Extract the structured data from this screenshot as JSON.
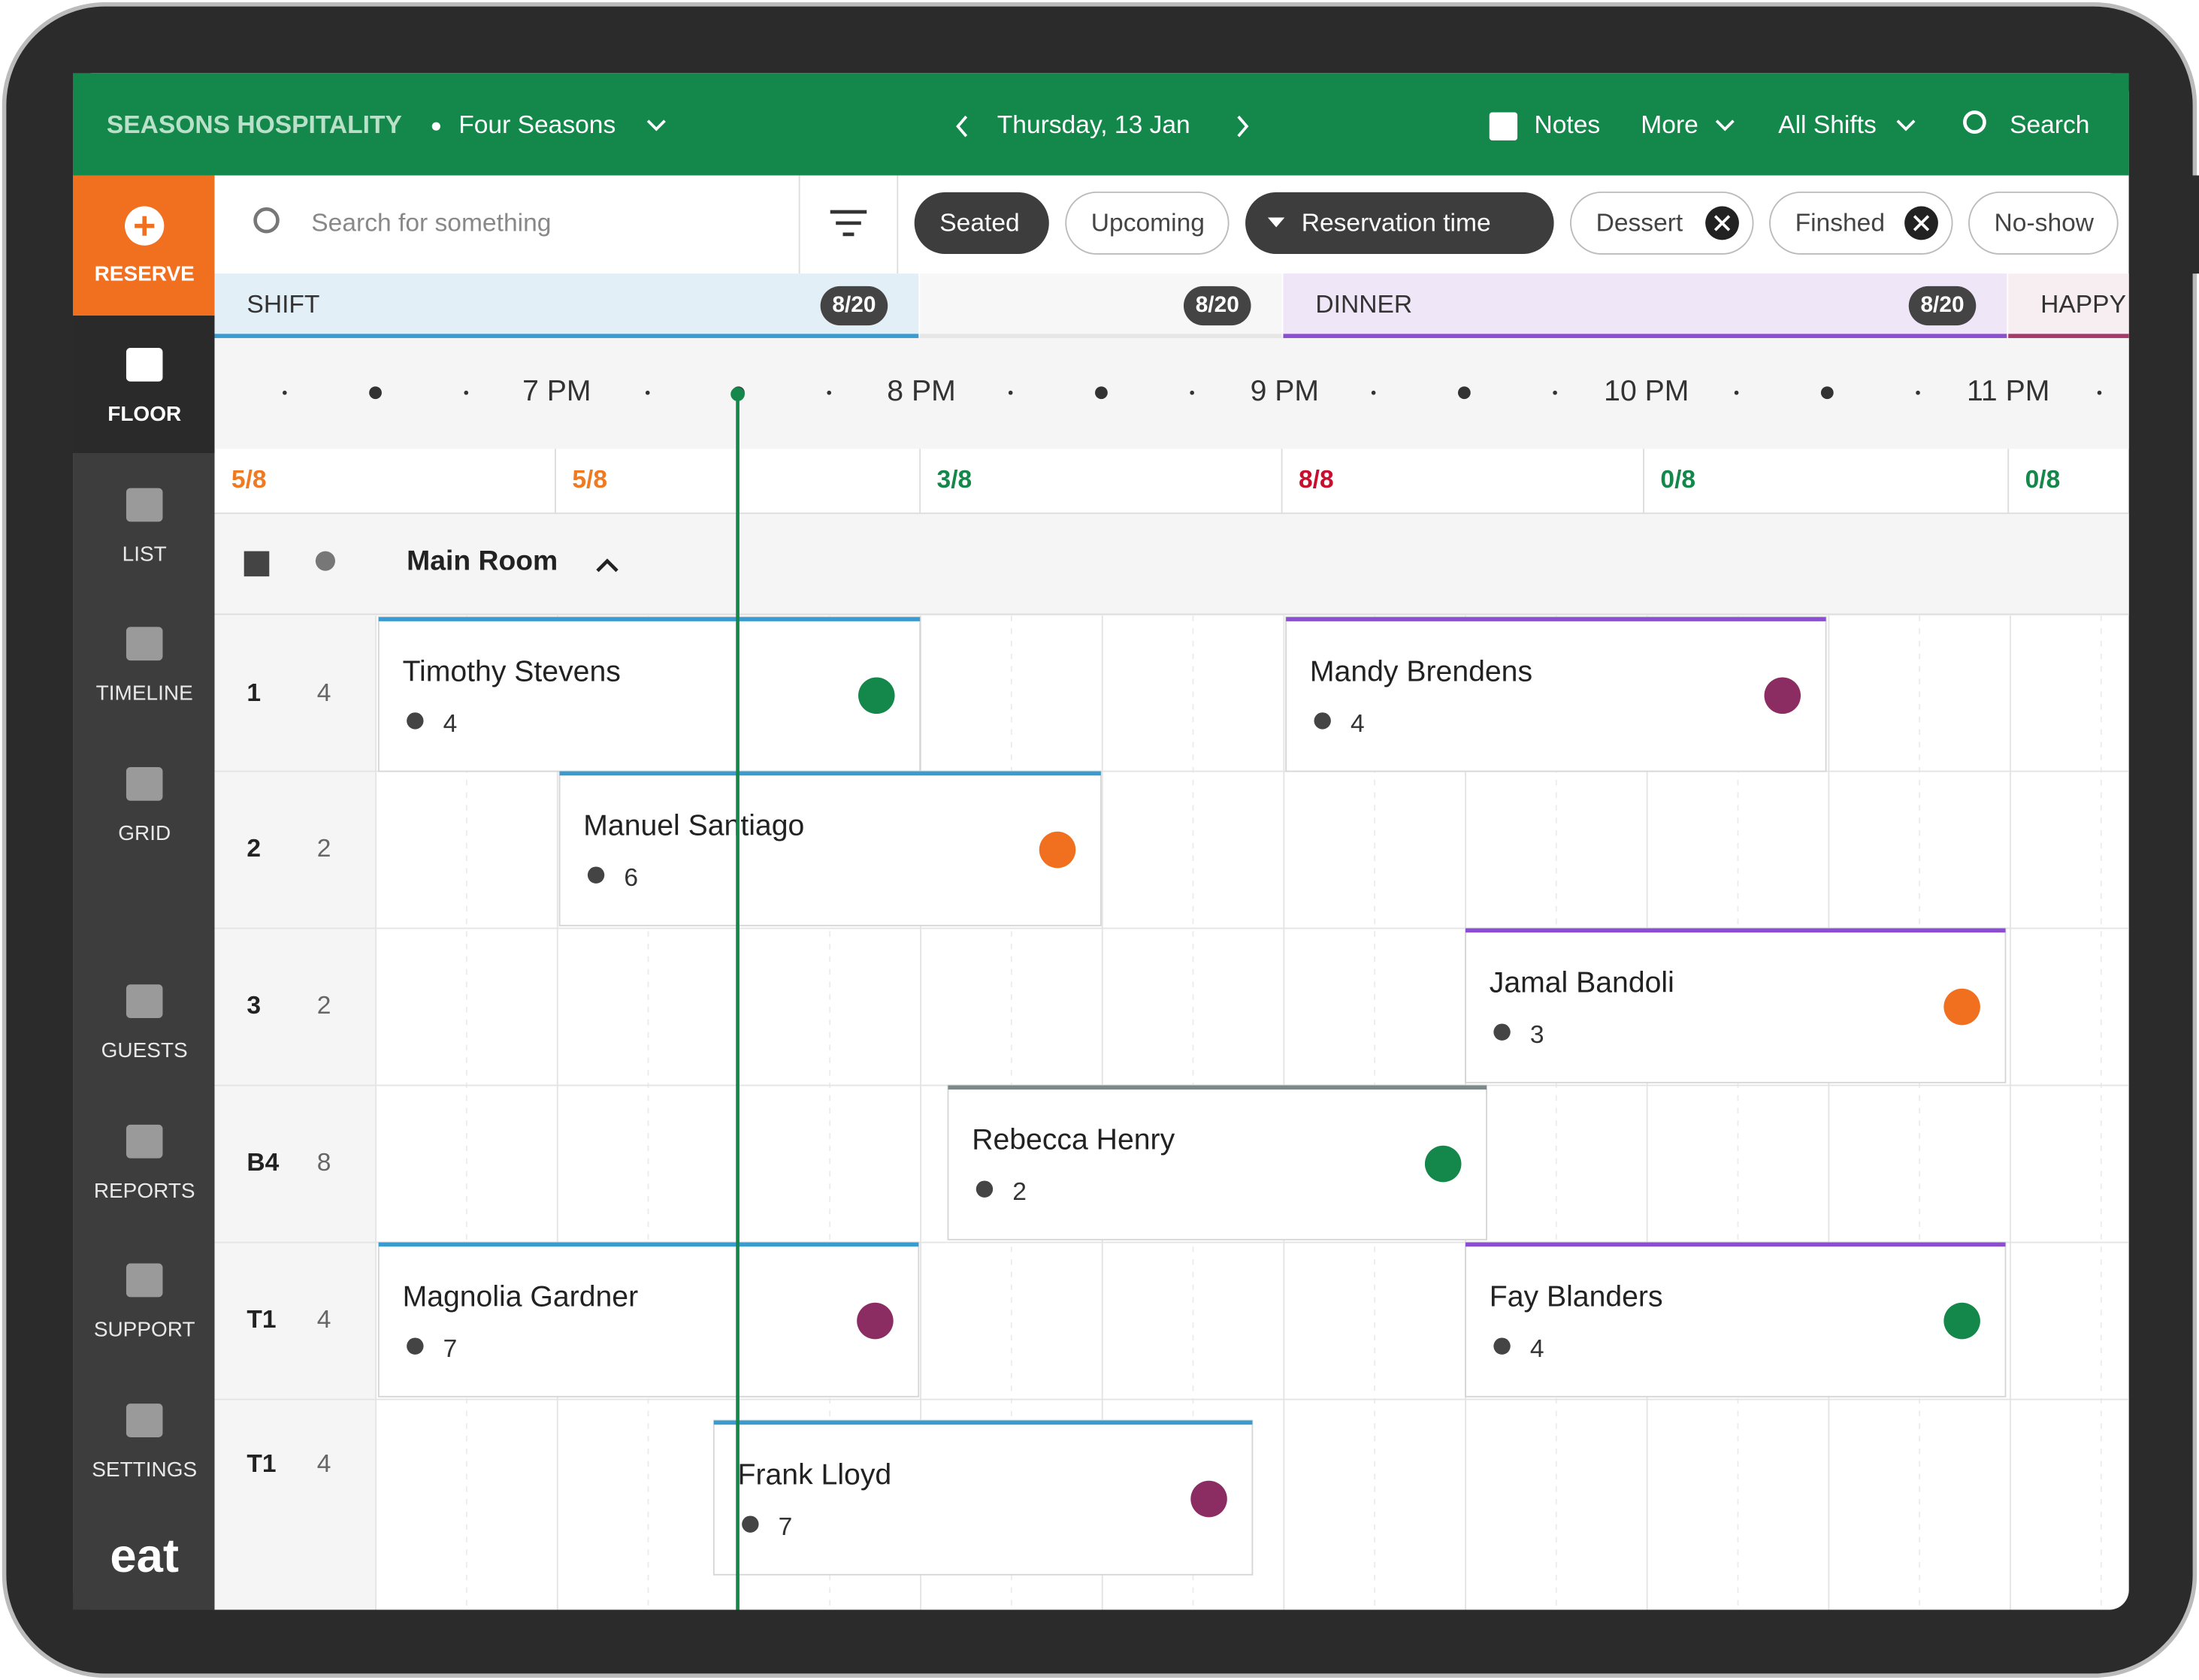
{
  "header": {
    "brand": "SEASONS HOSPITALITY",
    "venue": "Four Seasons",
    "date": "Thursday, 13 Jan",
    "actions": [
      "Notes",
      "More",
      "All Shifts",
      "Search"
    ]
  },
  "sidebar": {
    "reserve": "RESERVE",
    "nav": [
      "FLOOR",
      "LIST",
      "TIMELINE",
      "GRID",
      "GUESTS",
      "REPORTS",
      "SUPPORT",
      "SETTINGS"
    ],
    "logo": "eat"
  },
  "search": {
    "placeholder": "Search for something"
  },
  "filters": [
    {
      "label": "Seated",
      "style": "dark"
    },
    {
      "label": "Upcoming",
      "style": "outline"
    },
    {
      "label": "Reservation time",
      "style": "dark-sort"
    },
    {
      "label": "Dessert",
      "style": "removable"
    },
    {
      "label": "Finshed",
      "style": "removable"
    },
    {
      "label": "No-show",
      "style": "outline"
    }
  ],
  "shifts": [
    {
      "name": "SHIFT",
      "count": "8/20",
      "color": "#3a9bd0",
      "bg": "#e3eff7"
    },
    {
      "count": "8/20",
      "color": "#e6e6e6",
      "bg": "#f7f7f7"
    },
    {
      "name": "DINNER",
      "count": "8/20",
      "color": "#8a4fd0",
      "bg": "#efe6f7"
    },
    {
      "name": "HAPPY",
      "color": "#a33a6a",
      "bg": "#f7eef2"
    }
  ],
  "times": [
    "7 PM",
    "8 PM",
    "9 PM",
    "10 PM",
    "11 PM"
  ],
  "capacities": [
    {
      "label": "5/8",
      "color": "#f07a22"
    },
    {
      "label": "5/8",
      "color": "#f07a22"
    },
    {
      "label": "3/8",
      "color": "#14874a"
    },
    {
      "label": "8/8",
      "color": "#c8102e"
    },
    {
      "label": "0/8",
      "color": "#14874a"
    },
    {
      "label": "0/8",
      "color": "#14874a"
    }
  ],
  "room": "Main Room",
  "tables": [
    {
      "name": "1",
      "seats": 4,
      "reservations": [
        {
          "name": "Timothy Stevens",
          "guests": 4,
          "icon": "dining",
          "color": "#3a9bd0"
        },
        {
          "name": "Mandy Brendens",
          "guests": 4,
          "icon": "dessert",
          "color": "#8a4fd0"
        }
      ]
    },
    {
      "name": "2",
      "seats": 2,
      "reservations": [
        {
          "name": "Manuel Santiago",
          "guests": 6,
          "icon": "payment",
          "color": "#3a9bd0"
        }
      ]
    },
    {
      "name": "3",
      "seats": 2,
      "reservations": [
        {
          "name": "Jamal Bandoli",
          "guests": 3,
          "icon": "payment",
          "color": "#8a4fd0"
        }
      ]
    },
    {
      "name": "B4",
      "seats": 8,
      "reservations": [
        {
          "name": "Rebecca Henry",
          "guests": 2,
          "icon": "dining",
          "color": "#7a8a88"
        }
      ]
    },
    {
      "name": "T1",
      "seats": 4,
      "reservations": [
        {
          "name": "Magnolia Gardner",
          "guests": 7,
          "icon": "dessert",
          "color": "#3a9bd0"
        },
        {
          "name": "Fay Blanders",
          "guests": 4,
          "icon": "dining",
          "color": "#8a4fd0"
        }
      ]
    },
    {
      "name": "T1",
      "seats": 4,
      "reservations": [
        {
          "name": "Frank Lloyd",
          "guests": 7,
          "icon": "dessert",
          "color": "#3a9bd0"
        }
      ]
    }
  ]
}
